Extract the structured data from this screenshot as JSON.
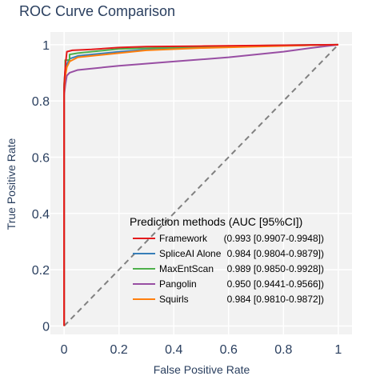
{
  "chart_data": {
    "type": "line",
    "title": "ROC Curve Comparison",
    "xlabel": "False Positive Rate",
    "ylabel": "True Positive Rate",
    "xlim": [
      -0.05,
      1.05
    ],
    "ylim": [
      -0.03,
      1.045
    ],
    "xticks": [
      "0",
      "0.2",
      "0.4",
      "0.6",
      "0.8",
      "1"
    ],
    "yticks": [
      "0",
      "0.2",
      "0.4",
      "0.6",
      "0.8",
      "1"
    ],
    "grid": true,
    "legend_title": "Prediction methods (AUC [95%CI])",
    "legend_position": "bottom-right",
    "diagonal": {
      "style": "dashed",
      "color": "#808080",
      "x": [
        0,
        1
      ],
      "y": [
        0,
        1
      ]
    },
    "series": [
      {
        "name": "Framework",
        "auc": "(0.993 [0.9907-0.9948])",
        "color": "#e41a1c",
        "x": [
          0,
          0,
          0.003,
          0.005,
          0.01,
          0.03,
          0.1,
          0.2,
          0.3,
          0.5,
          0.7,
          0.9,
          1.0
        ],
        "y": [
          0,
          0.85,
          0.9,
          0.93,
          0.975,
          0.98,
          0.983,
          0.99,
          0.993,
          0.995,
          0.997,
          0.999,
          1.0
        ]
      },
      {
        "name": "SpliceAI Alone",
        "auc": "0.984 [0.9804-0.9879])",
        "color": "#377eb8",
        "x": [
          0,
          0,
          0.005,
          0.01,
          0.02,
          0.05,
          0.1,
          0.2,
          0.3,
          0.5,
          0.7,
          0.9,
          1.0
        ],
        "y": [
          0,
          0.84,
          0.9,
          0.93,
          0.95,
          0.96,
          0.965,
          0.975,
          0.982,
          0.99,
          0.995,
          0.998,
          1.0
        ]
      },
      {
        "name": "MaxEntScan",
        "auc": "0.989 [0.9850-0.9928])",
        "color": "#4daf4a",
        "x": [
          0,
          0,
          0.004,
          0.004,
          0.02,
          0.02,
          0.05,
          0.1,
          0.2,
          0.4,
          0.6,
          0.8,
          1.0
        ],
        "y": [
          0,
          0.86,
          0.91,
          0.945,
          0.945,
          0.965,
          0.97,
          0.975,
          0.985,
          0.99,
          0.995,
          0.998,
          1.0
        ]
      },
      {
        "name": "Pangolin",
        "auc": "0.950 [0.9441-0.9566])",
        "color": "#984ea3",
        "x": [
          0,
          0,
          0.005,
          0.01,
          0.02,
          0.05,
          0.1,
          0.2,
          0.4,
          0.6,
          0.8,
          0.9,
          1.0
        ],
        "y": [
          0,
          0.82,
          0.86,
          0.89,
          0.9,
          0.91,
          0.915,
          0.925,
          0.94,
          0.955,
          0.975,
          0.988,
          1.0
        ]
      },
      {
        "name": "Squirls",
        "auc": "0.984 [0.9810-0.9872])",
        "color": "#ff7f0e",
        "x": [
          0,
          0,
          0.003,
          0.01,
          0.02,
          0.05,
          0.1,
          0.2,
          0.3,
          0.5,
          0.7,
          0.9,
          1.0
        ],
        "y": [
          0,
          0.83,
          0.88,
          0.92,
          0.94,
          0.955,
          0.96,
          0.97,
          0.98,
          0.988,
          0.993,
          0.998,
          1.0
        ]
      }
    ]
  }
}
